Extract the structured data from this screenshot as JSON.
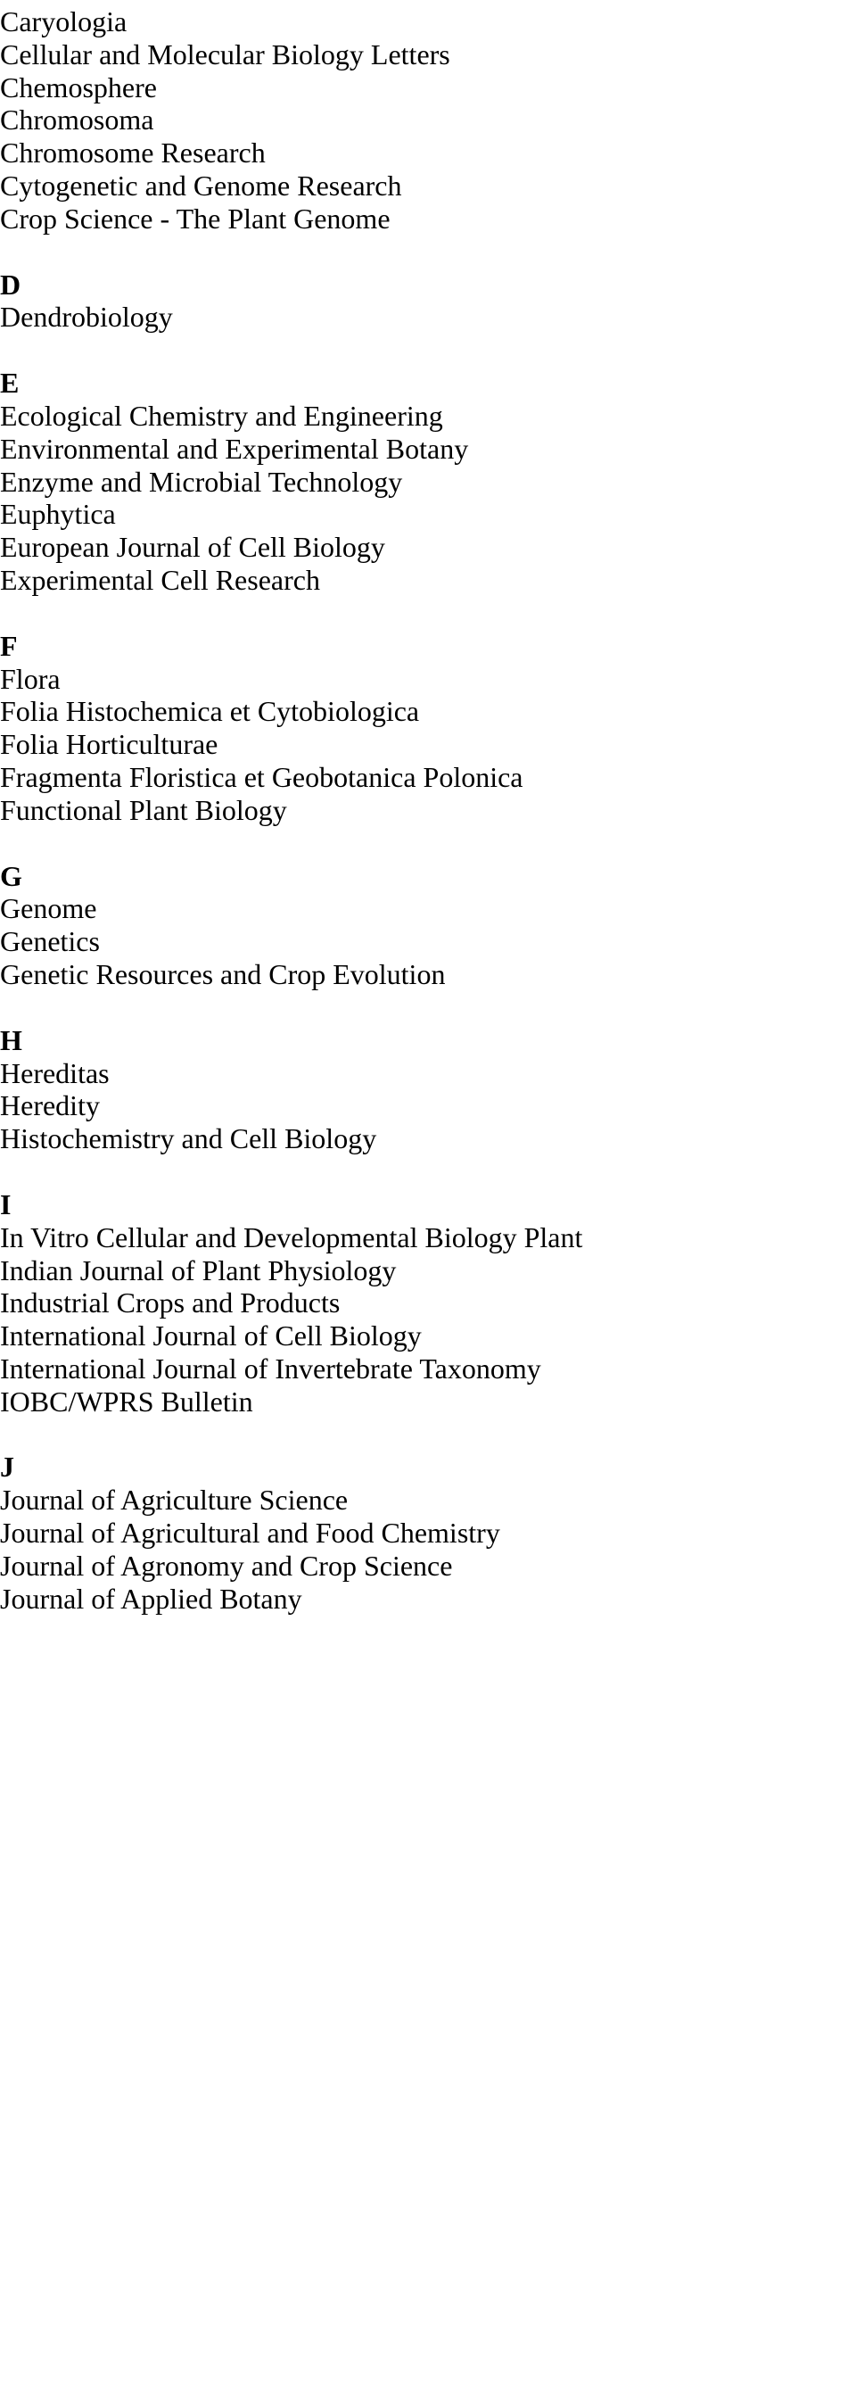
{
  "sections": [
    {
      "letter": "",
      "items": [
        "Caryologia",
        "Cellular and Molecular Biology Letters",
        "Chemosphere",
        "Chromosoma",
        "Chromosome Research",
        "Cytogenetic and Genome Research",
        "Crop Science - The Plant Genome"
      ]
    },
    {
      "letter": "D",
      "items": [
        "Dendrobiology"
      ]
    },
    {
      "letter": "E",
      "items": [
        "Ecological Chemistry and Engineering",
        "Environmental and Experimental Botany",
        "Enzyme and Microbial Technology",
        "Euphytica",
        "European Journal of Cell Biology",
        "Experimental Cell Research"
      ]
    },
    {
      "letter": "F",
      "items": [
        "Flora",
        "Folia Histochemica et Cytobiologica",
        "Folia Horticulturae",
        "Fragmenta Floristica et Geobotanica Polonica",
        "Functional Plant Biology"
      ]
    },
    {
      "letter": "G",
      "items": [
        "Genome",
        "Genetics",
        "Genetic Resources and Crop Evolution"
      ]
    },
    {
      "letter": "H",
      "items": [
        "Hereditas",
        "Heredity",
        "Histochemistry and Cell Biology"
      ]
    },
    {
      "letter": "I",
      "items": [
        "In Vitro Cellular and Developmental Biology Plant",
        "Indian Journal of Plant Physiology",
        "Industrial Crops and Products",
        "International Journal of Cell Biology",
        "International Journal of Invertebrate Taxonomy",
        "IOBC/WPRS Bulletin"
      ]
    },
    {
      "letter": "J",
      "items": [
        "Journal of Agriculture Science",
        "Journal of Agricultural and Food Chemistry",
        "Journal of Agronomy and Crop Science",
        "Journal of Applied Botany"
      ]
    }
  ]
}
